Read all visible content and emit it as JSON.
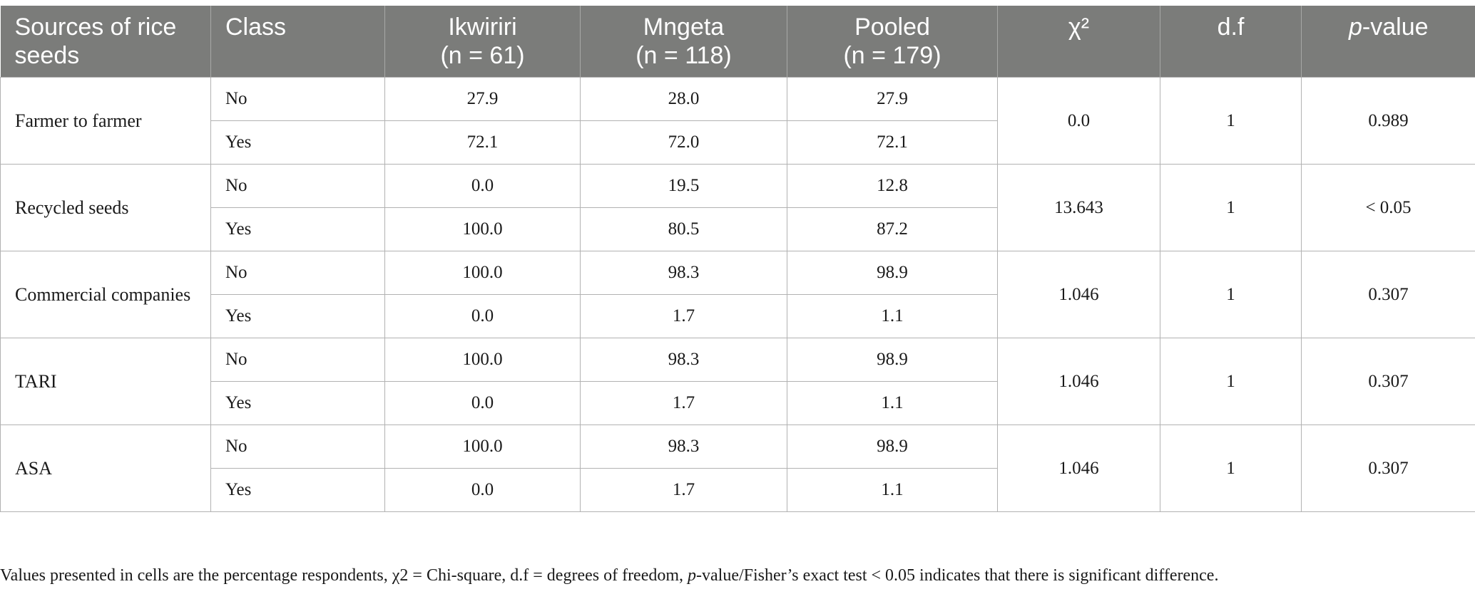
{
  "table": {
    "headers": {
      "source": "Sources of rice seeds",
      "class": "Class",
      "ikwiriri_name": "Ikwiriri",
      "ikwiriri_n": "(n = 61)",
      "mngeta_name": "Mngeta",
      "mngeta_n": "(n = 118)",
      "pooled_name": "Pooled",
      "pooled_n": "(n = 179)",
      "chi": "χ²",
      "df": "d.f",
      "p_prefix": "p",
      "p_suffix": "-value"
    },
    "groups": [
      {
        "source": "Farmer to farmer",
        "chi": "0.0",
        "df": "1",
        "p": "0.989",
        "rows": [
          {
            "class": "No",
            "ikwiriri": "27.9",
            "mngeta": "28.0",
            "pooled": "27.9"
          },
          {
            "class": "Yes",
            "ikwiriri": "72.1",
            "mngeta": "72.0",
            "pooled": "72.1"
          }
        ]
      },
      {
        "source": "Recycled seeds",
        "chi": "13.643",
        "df": "1",
        "p": "< 0.05",
        "rows": [
          {
            "class": "No",
            "ikwiriri": "0.0",
            "mngeta": "19.5",
            "pooled": "12.8"
          },
          {
            "class": "Yes",
            "ikwiriri": "100.0",
            "mngeta": "80.5",
            "pooled": "87.2"
          }
        ]
      },
      {
        "source": "Commercial companies",
        "chi": "1.046",
        "df": "1",
        "p": "0.307",
        "rows": [
          {
            "class": "No",
            "ikwiriri": "100.0",
            "mngeta": "98.3",
            "pooled": "98.9"
          },
          {
            "class": "Yes",
            "ikwiriri": "0.0",
            "mngeta": "1.7",
            "pooled": "1.1"
          }
        ]
      },
      {
        "source": "TARI",
        "chi": "1.046",
        "df": "1",
        "p": "0.307",
        "rows": [
          {
            "class": "No",
            "ikwiriri": "100.0",
            "mngeta": "98.3",
            "pooled": "98.9"
          },
          {
            "class": "Yes",
            "ikwiriri": "0.0",
            "mngeta": "1.7",
            "pooled": "1.1"
          }
        ]
      },
      {
        "source": "ASA",
        "chi": "1.046",
        "df": "1",
        "p": "0.307",
        "rows": [
          {
            "class": "No",
            "ikwiriri": "100.0",
            "mngeta": "98.3",
            "pooled": "98.9"
          },
          {
            "class": "Yes",
            "ikwiriri": "0.0",
            "mngeta": "1.7",
            "pooled": "1.1"
          }
        ]
      }
    ]
  },
  "footnote": {
    "part1": "Values presented in cells are the percentage respondents, χ2 = Chi-square, d.f = degrees of freedom, ",
    "p_italic": "p",
    "part2": "-value/Fisher’s exact test < 0.05 indicates that there is significant difference."
  }
}
